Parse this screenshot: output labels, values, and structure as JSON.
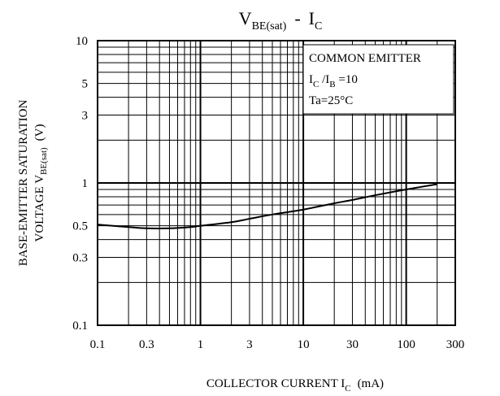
{
  "chart_data": {
    "type": "line",
    "title": {
      "main": "V",
      "sub": "BE(sat)",
      "sep": "-",
      "var": "I",
      "var_sub": "C"
    },
    "xlabel": {
      "text": "COLLECTOR CURRENT I",
      "sub": "C",
      "unit": "(mA)"
    },
    "ylabel": {
      "line1": "BASE-EMITTER SATURATION",
      "line2": "VOLTAGE V",
      "line2_sub": "BE(sat)",
      "unit": "(V)"
    },
    "x_scale": "log",
    "y_scale": "log",
    "xlim": [
      0.1,
      300
    ],
    "ylim": [
      0.1,
      10
    ],
    "x_ticks": [
      {
        "value": 0.1,
        "label": "0.1"
      },
      {
        "value": 0.3,
        "label": "0.3"
      },
      {
        "value": 1,
        "label": "1"
      },
      {
        "value": 3,
        "label": "3"
      },
      {
        "value": 10,
        "label": "10"
      },
      {
        "value": 30,
        "label": "30"
      },
      {
        "value": 100,
        "label": "100"
      },
      {
        "value": 300,
        "label": "300"
      }
    ],
    "y_ticks": [
      {
        "value": 0.1,
        "label": "0.1"
      },
      {
        "value": 0.3,
        "label": "0.3"
      },
      {
        "value": 0.5,
        "label": "0.5"
      },
      {
        "value": 1,
        "label": "1"
      },
      {
        "value": 3,
        "label": "3"
      },
      {
        "value": 5,
        "label": "5"
      },
      {
        "value": 10,
        "label": "10"
      }
    ],
    "grid": true,
    "legend": {
      "position": "top-right",
      "lines": [
        {
          "text": "COMMON EMITTER"
        },
        {
          "text": "I",
          "sub": "C",
          "text2": " /I",
          "sub2": "B",
          "text3": " =10"
        },
        {
          "text": "Ta=25°C"
        }
      ]
    },
    "series": [
      {
        "x": [
          0.1,
          0.2,
          0.3,
          0.5,
          0.8,
          1,
          2,
          3,
          5,
          10,
          20,
          30,
          50,
          100,
          200
        ],
        "y": [
          0.51,
          0.49,
          0.48,
          0.48,
          0.49,
          0.5,
          0.53,
          0.56,
          0.6,
          0.65,
          0.72,
          0.76,
          0.82,
          0.9,
          0.98
        ]
      }
    ],
    "colors": {
      "line": "#000000",
      "grid": "#000000",
      "background": "#ffffff"
    }
  }
}
